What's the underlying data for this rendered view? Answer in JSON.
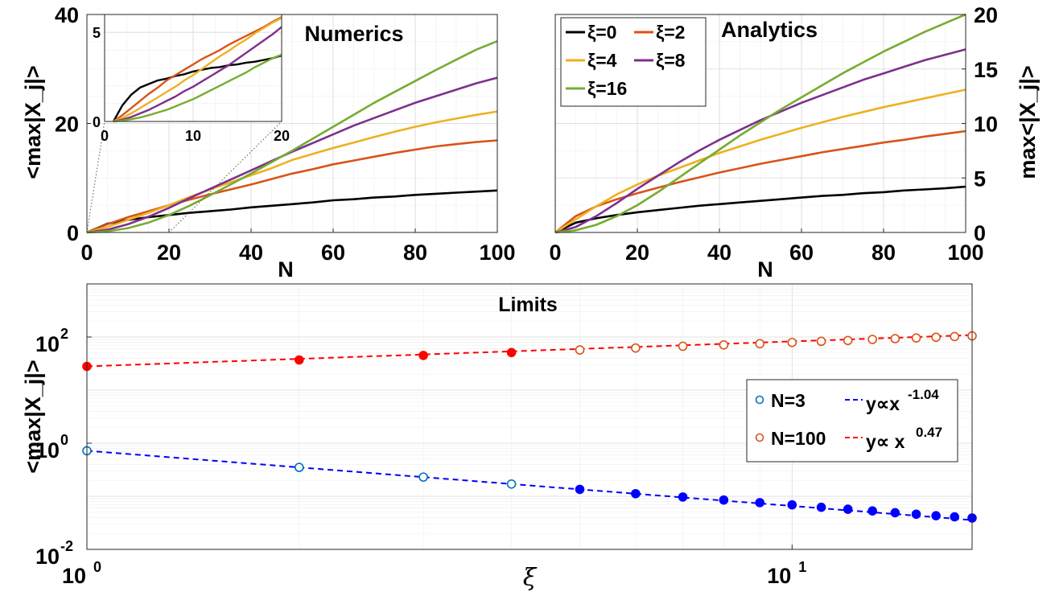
{
  "chart_data": [
    {
      "type": "line",
      "title": "Numerics",
      "xlabel": "N",
      "ylabel": "<max|X_j|>",
      "xlim": [
        0,
        100
      ],
      "ylim": [
        0,
        40
      ],
      "x_ticks": [
        "0",
        "20",
        "40",
        "60",
        "80",
        "100"
      ],
      "y_ticks": [
        "0",
        "20",
        "40"
      ],
      "x": [
        0,
        5,
        10,
        15,
        20,
        25,
        30,
        35,
        40,
        45,
        50,
        55,
        60,
        65,
        70,
        75,
        80,
        85,
        90,
        95,
        100
      ],
      "series": [
        {
          "name": "ξ=0",
          "color": "#000000",
          "values": [
            0,
            1.6,
            2.3,
            2.8,
            3.2,
            3.6,
            3.9,
            4.2,
            4.6,
            4.9,
            5.2,
            5.5,
            5.9,
            6.1,
            6.4,
            6.6,
            6.9,
            7.1,
            7.3,
            7.5,
            7.7
          ]
        },
        {
          "name": "ξ=2",
          "color": "#d95319",
          "values": [
            0,
            1.5,
            2.8,
            3.9,
            5.0,
            6.0,
            7.0,
            7.9,
            8.8,
            9.8,
            10.8,
            11.6,
            12.5,
            13.2,
            13.9,
            14.6,
            15.2,
            15.8,
            16.2,
            16.6,
            16.9
          ]
        },
        {
          "name": "ξ=4",
          "color": "#edb120",
          "values": [
            0,
            1.0,
            2.3,
            3.6,
            5.0,
            6.5,
            7.9,
            9.2,
            10.5,
            11.8,
            13.3,
            14.4,
            15.5,
            16.5,
            17.5,
            18.5,
            19.4,
            20.2,
            20.9,
            21.6,
            22.2
          ]
        },
        {
          "name": "ξ=8",
          "color": "#7e2f8e",
          "values": [
            0,
            0.5,
            1.5,
            2.9,
            4.5,
            6.3,
            8.0,
            9.7,
            11.4,
            13.1,
            14.8,
            16.4,
            18.0,
            19.6,
            21.0,
            22.4,
            23.8,
            25.0,
            26.2,
            27.4,
            28.4
          ]
        },
        {
          "name": "ξ=16",
          "color": "#77ac30",
          "values": [
            0,
            0.2,
            0.8,
            1.8,
            3.2,
            4.9,
            6.8,
            8.8,
            10.8,
            12.9,
            15.0,
            17.2,
            19.4,
            21.6,
            23.8,
            25.8,
            27.8,
            29.8,
            31.7,
            33.6,
            35.1
          ]
        }
      ],
      "inset": {
        "xlim": [
          0,
          20
        ],
        "ylim": [
          0,
          6
        ],
        "x_ticks": [
          "0",
          "10",
          "20"
        ],
        "y_ticks": [
          "0",
          "5"
        ],
        "x": [
          1,
          2,
          3,
          4,
          5,
          6,
          7,
          8,
          9,
          10,
          11,
          12,
          13,
          14,
          15,
          16,
          17,
          18,
          19,
          20
        ],
        "series": [
          {
            "name": "ξ=0",
            "values": [
              0,
              0.9,
              1.5,
              1.9,
              2.1,
              2.3,
              2.4,
              2.55,
              2.65,
              2.8,
              2.9,
              3.0,
              3.05,
              3.15,
              3.2,
              3.3,
              3.35,
              3.45,
              3.55,
              3.7
            ]
          },
          {
            "name": "ξ=2",
            "values": [
              0,
              0.35,
              0.75,
              1.15,
              1.55,
              1.9,
              2.3,
              2.6,
              2.9,
              3.2,
              3.5,
              3.75,
              4.0,
              4.3,
              4.55,
              4.8,
              5.05,
              5.3,
              5.6,
              5.85
            ]
          },
          {
            "name": "ξ=4",
            "values": [
              0,
              0.2,
              0.45,
              0.75,
              1.05,
              1.35,
              1.65,
              1.95,
              2.3,
              2.6,
              2.95,
              3.3,
              3.65,
              3.95,
              4.3,
              4.6,
              4.95,
              5.25,
              5.55,
              5.8
            ]
          },
          {
            "name": "ξ=8",
            "values": [
              0,
              0.1,
              0.25,
              0.45,
              0.65,
              0.9,
              1.15,
              1.4,
              1.7,
              1.95,
              2.25,
              2.55,
              2.85,
              3.15,
              3.5,
              3.85,
              4.2,
              4.55,
              4.9,
              5.3
            ]
          },
          {
            "name": "ξ=16",
            "values": [
              0,
              0.05,
              0.12,
              0.22,
              0.35,
              0.5,
              0.65,
              0.85,
              1.05,
              1.25,
              1.5,
              1.75,
              2.0,
              2.25,
              2.5,
              2.75,
              3.05,
              3.3,
              3.55,
              3.75
            ]
          }
        ]
      }
    },
    {
      "type": "line",
      "title": "Analytics",
      "xlabel": "N",
      "ylabel": "max<|X_j|>",
      "xlim": [
        0,
        100
      ],
      "ylim": [
        0,
        20
      ],
      "y_axis_side": "right",
      "x_ticks": [
        "0",
        "20",
        "40",
        "60",
        "80",
        "100"
      ],
      "y_ticks": [
        "0",
        "5",
        "10",
        "15",
        "20"
      ],
      "x": [
        0,
        5,
        10,
        15,
        20,
        25,
        30,
        35,
        40,
        45,
        50,
        55,
        60,
        65,
        70,
        75,
        80,
        85,
        90,
        95,
        100
      ],
      "series": [
        {
          "name": "ξ=0",
          "color": "#000000",
          "values": [
            0,
            0.9,
            1.3,
            1.6,
            1.85,
            2.05,
            2.25,
            2.45,
            2.6,
            2.75,
            2.9,
            3.05,
            3.2,
            3.35,
            3.45,
            3.6,
            3.7,
            3.85,
            3.95,
            4.05,
            4.2
          ]
        },
        {
          "name": "ξ=2",
          "color": "#d95319",
          "values": [
            0,
            1.5,
            2.4,
            3.05,
            3.6,
            4.1,
            4.6,
            5.05,
            5.5,
            5.9,
            6.3,
            6.65,
            7.0,
            7.35,
            7.65,
            7.95,
            8.25,
            8.5,
            8.8,
            9.05,
            9.3
          ]
        },
        {
          "name": "ξ=4",
          "color": "#edb120",
          "values": [
            0,
            1.2,
            2.4,
            3.5,
            4.4,
            5.2,
            5.9,
            6.6,
            7.3,
            7.9,
            8.5,
            9.05,
            9.6,
            10.1,
            10.6,
            11.05,
            11.5,
            11.9,
            12.3,
            12.7,
            13.1
          ]
        },
        {
          "name": "ξ=8",
          "color": "#7e2f8e",
          "values": [
            0,
            0.5,
            1.5,
            2.7,
            4.0,
            5.2,
            6.4,
            7.5,
            8.5,
            9.4,
            10.3,
            11.1,
            11.9,
            12.6,
            13.3,
            14.0,
            14.6,
            15.2,
            15.8,
            16.3,
            16.8
          ]
        },
        {
          "name": "ξ=16",
          "color": "#77ac30",
          "values": [
            0,
            0.2,
            0.7,
            1.5,
            2.5,
            3.7,
            5.0,
            6.3,
            7.6,
            8.9,
            10.1,
            11.3,
            12.4,
            13.5,
            14.6,
            15.6,
            16.6,
            17.5,
            18.4,
            19.2,
            20.0
          ]
        }
      ]
    },
    {
      "type": "scatter",
      "title": "Limits",
      "xlabel": "ξ",
      "ylabel": "<max|X_j|>",
      "xscale": "log",
      "yscale": "log",
      "xlim": [
        1,
        18
      ],
      "ylim": [
        0.01,
        1000
      ],
      "x_ticks": [
        {
          "value": 1,
          "base": "10",
          "exp": "0"
        },
        {
          "value": 10,
          "base": "10",
          "exp": "1"
        }
      ],
      "y_ticks": [
        {
          "value": 0.01,
          "base": "10",
          "exp": "-2"
        },
        {
          "value": 1,
          "base": "10",
          "exp": "0"
        },
        {
          "value": 100,
          "base": "10",
          "exp": "2"
        }
      ],
      "x": [
        1,
        2,
        3,
        4,
        5,
        6,
        7,
        8,
        9,
        10,
        11,
        12,
        13,
        14,
        15,
        16,
        17,
        18
      ],
      "series": [
        {
          "name": "N=3",
          "color": "#0072bd",
          "marker": "open-circle",
          "values": [
            0.72,
            0.35,
            0.23,
            0.17,
            0.135,
            0.112,
            0.097,
            0.085,
            0.076,
            0.069,
            0.062,
            0.057,
            0.053,
            0.049,
            0.046,
            0.043,
            0.041,
            0.039
          ],
          "filled_from_x": 5,
          "filled_color": "#0000ff"
        },
        {
          "name": "N=100",
          "color": "#d95319",
          "marker": "open-circle",
          "values": [
            28,
            37,
            45,
            51,
            57,
            62,
            67,
            71,
            75,
            79,
            83,
            86,
            90,
            93,
            96,
            99,
            102,
            105
          ],
          "filled_until_x": 5,
          "filled_color": "#ff0000"
        }
      ],
      "fits": [
        {
          "name": "y∝x^-1.04",
          "label_base": "y∝x",
          "label_exp": "-1.04",
          "exponent": -1.04,
          "prefactor": 0.72,
          "color": "#0000ff",
          "style": "dashed"
        },
        {
          "name": "y∝ x^0.47",
          "label_base": "y∝ x",
          "label_exp": "0.47",
          "exponent": 0.47,
          "prefactor": 28,
          "color": "#ff0000",
          "style": "dashed"
        }
      ]
    }
  ]
}
